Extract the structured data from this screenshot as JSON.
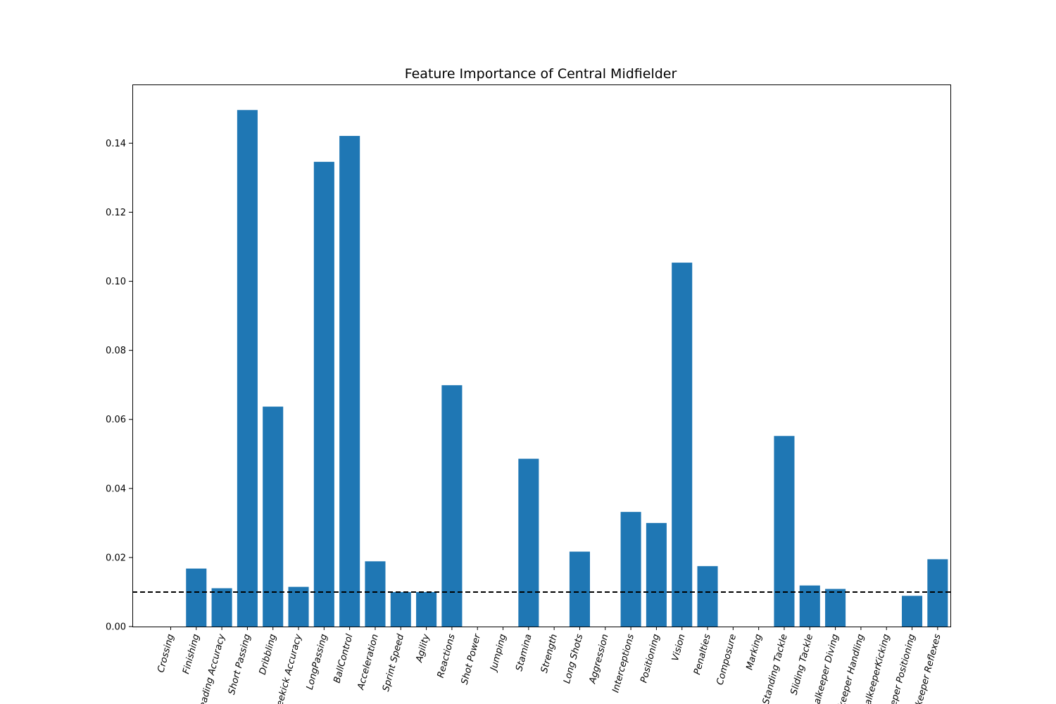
{
  "chart_data": {
    "type": "bar",
    "title": "Feature Importance of Central Midfielder",
    "xlabel": "",
    "ylabel": "",
    "categories": [
      "Crossing",
      "Finishing",
      "Heading Accuracy",
      "Short Passing",
      "Dribbling",
      "Freekick Accuracy",
      "LongPassing",
      "BallControl",
      "Acceleration",
      "Sprint Speed",
      "Agility",
      "Reactions",
      "Shot Power",
      "Jumping",
      "Stamina",
      "Strength",
      "Long Shots",
      "Aggression",
      "Interceptions",
      "Positioning",
      "Vision",
      "Penalties",
      "Composure",
      "Marking",
      "Standing Tackle",
      "Sliding Tackle",
      "Goalkeeper Diving",
      "Goalkeeper Handling",
      "GoalkeeperKicking",
      "Goalkeeper Positioning",
      "Goalkeeper Reflexes"
    ],
    "values": [
      0.0,
      0.0168,
      0.0111,
      0.1496,
      0.0637,
      0.0115,
      0.1346,
      0.1421,
      0.0189,
      0.01,
      0.01,
      0.0699,
      0.0,
      0.0,
      0.0486,
      0.0,
      0.0217,
      0.0,
      0.0332,
      0.03,
      0.1054,
      0.0175,
      0.0,
      0.0,
      0.0552,
      0.0119,
      0.0109,
      0.0,
      0.0,
      0.0089,
      0.0195
    ],
    "ylim": [
      0,
      0.157
    ],
    "yticks": [
      0.0,
      0.02,
      0.04,
      0.06,
      0.08,
      0.1,
      0.12,
      0.14
    ],
    "ytick_labels": [
      "0.00",
      "0.02",
      "0.04",
      "0.06",
      "0.08",
      "0.10",
      "0.12",
      "0.14"
    ],
    "threshold": 0.01,
    "bar_color": "#1f77b4",
    "threshold_color": "#000000",
    "grid": false
  }
}
